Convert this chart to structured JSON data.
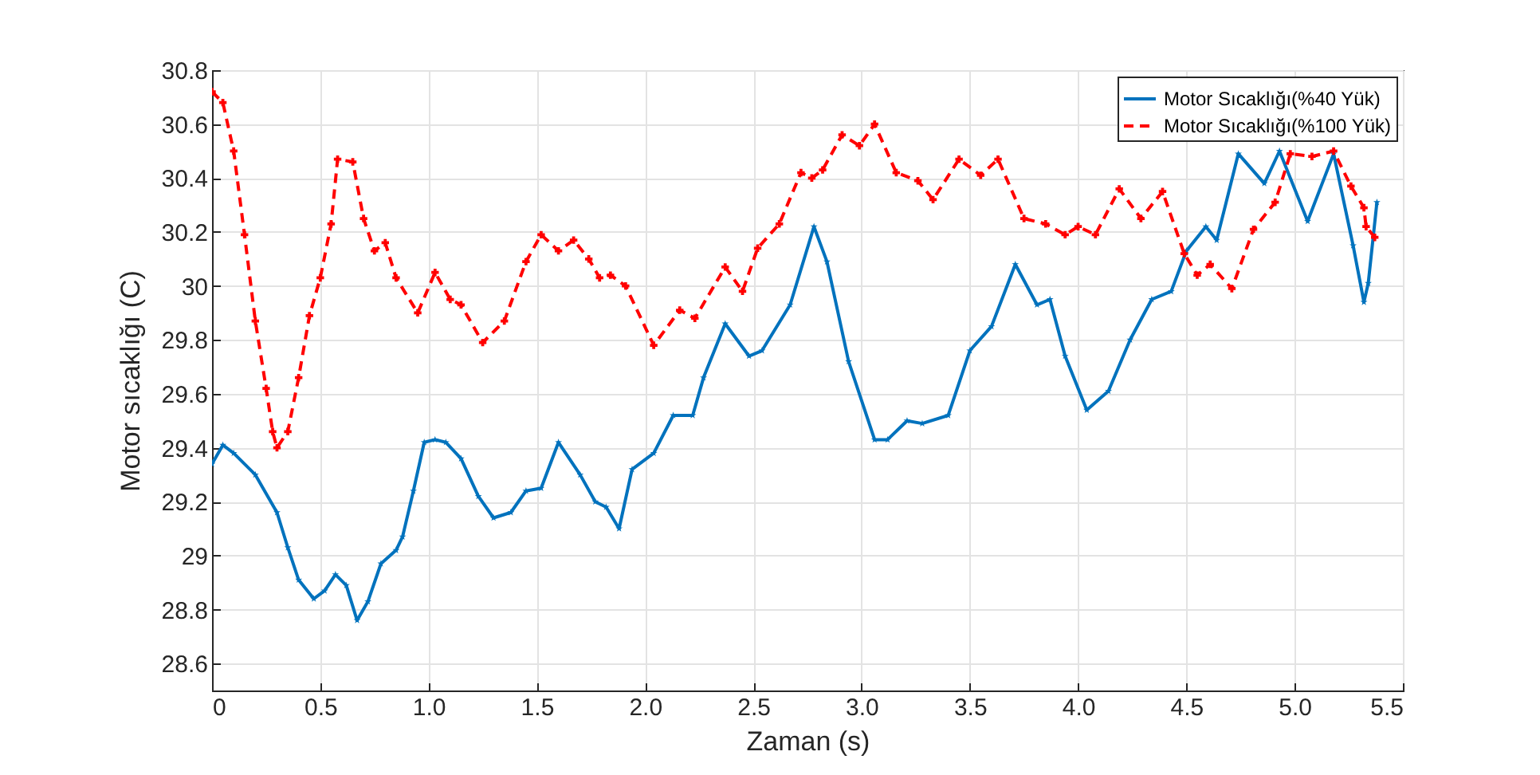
{
  "chart_data": {
    "type": "line",
    "xlabel": "Zaman (s)",
    "ylabel": "Motor sıcaklığı (C)",
    "xlim": [
      0,
      5.5
    ],
    "ylim": [
      28.5,
      30.8
    ],
    "xticks": [
      0,
      0.5,
      {
        "value": 1,
        "label": "1.0"
      },
      1.5,
      {
        "value": 2,
        "label": "2.0"
      },
      2.5,
      {
        "value": 3,
        "label": "3.0"
      },
      3.5,
      {
        "value": 4,
        "label": "4.0"
      },
      4.5,
      {
        "value": 5,
        "label": "5.0"
      },
      5.5
    ],
    "yticks": [
      28.6,
      28.8,
      29,
      29.2,
      29.4,
      29.6,
      29.8,
      30,
      30.2,
      30.4,
      30.6,
      30.8
    ],
    "grid": true,
    "legend": "top right",
    "series": [
      {
        "name": "Motor Sıcaklığı(%40 Yük)",
        "color": "#0072bd",
        "marker": "star",
        "line_style": "solid",
        "x": [
          0,
          0.05,
          0.1,
          0.2,
          0.3,
          0.35,
          0.4,
          0.47,
          0.52,
          0.57,
          0.62,
          0.67,
          0.72,
          0.78,
          0.85,
          0.88,
          0.93,
          0.98,
          1.03,
          1.08,
          1.15,
          1.23,
          1.3,
          1.38,
          1.45,
          1.52,
          1.6,
          1.7,
          1.77,
          1.82,
          1.88,
          1.94,
          2.04,
          2.13,
          2.22,
          2.27,
          2.37,
          2.48,
          2.54,
          2.67,
          2.78,
          2.84,
          2.94,
          3.06,
          3.12,
          3.21,
          3.28,
          3.4,
          3.5,
          3.6,
          3.71,
          3.81,
          3.87,
          3.94,
          4.04,
          4.14,
          4.24,
          4.34,
          4.43,
          4.5,
          4.59,
          4.64,
          4.74,
          4.86,
          4.93,
          5.06,
          5.18,
          5.27,
          5.32,
          5.34,
          5.38
        ],
        "values": [
          29.34,
          29.41,
          29.38,
          29.3,
          29.16,
          29.03,
          28.91,
          28.84,
          28.87,
          28.93,
          28.89,
          28.76,
          28.83,
          28.97,
          29.02,
          29.07,
          29.24,
          29.42,
          29.43,
          29.42,
          29.36,
          29.22,
          29.14,
          29.16,
          29.24,
          29.25,
          29.42,
          29.3,
          29.2,
          29.18,
          29.1,
          29.32,
          29.38,
          29.52,
          29.52,
          29.66,
          29.86,
          29.74,
          29.76,
          29.93,
          30.22,
          30.09,
          29.72,
          29.43,
          29.43,
          29.5,
          29.49,
          29.52,
          29.76,
          29.85,
          30.08,
          29.93,
          29.95,
          29.74,
          29.54,
          29.61,
          29.8,
          29.95,
          29.98,
          30.13,
          30.22,
          30.17,
          30.49,
          30.38,
          30.5,
          30.24,
          30.49,
          30.15,
          29.94,
          30.01,
          30.31
        ]
      },
      {
        "name": "Motor Sıcaklığı(%100 Yük)",
        "color": "#ff0000",
        "marker": "cross",
        "line_style": "dashed",
        "x": [
          0,
          0.05,
          0.1,
          0.15,
          0.2,
          0.25,
          0.28,
          0.3,
          0.35,
          0.4,
          0.45,
          0.5,
          0.55,
          0.58,
          0.65,
          0.7,
          0.75,
          0.8,
          0.85,
          0.95,
          1.03,
          1.1,
          1.15,
          1.25,
          1.35,
          1.45,
          1.52,
          1.6,
          1.67,
          1.74,
          1.79,
          1.84,
          1.91,
          2.04,
          2.16,
          2.23,
          2.37,
          2.45,
          2.52,
          2.62,
          2.72,
          2.77,
          2.82,
          2.91,
          2.99,
          3.06,
          3.16,
          3.26,
          3.33,
          3.45,
          3.55,
          3.63,
          3.75,
          3.85,
          3.94,
          4.0,
          4.08,
          4.19,
          4.29,
          4.39,
          4.49,
          4.55,
          4.61,
          4.71,
          4.81,
          4.91,
          4.98,
          5.08,
          5.18,
          5.26,
          5.32,
          5.33,
          5.37
        ],
        "values": [
          30.72,
          30.68,
          30.5,
          30.19,
          29.87,
          29.62,
          29.46,
          29.4,
          29.46,
          29.66,
          29.89,
          30.03,
          30.23,
          30.47,
          30.46,
          30.25,
          30.13,
          30.16,
          30.03,
          29.9,
          30.05,
          29.95,
          29.93,
          29.79,
          29.87,
          30.09,
          30.19,
          30.13,
          30.17,
          30.1,
          30.03,
          30.04,
          30,
          29.78,
          29.91,
          29.88,
          30.07,
          29.98,
          30.14,
          30.23,
          30.42,
          30.4,
          30.43,
          30.56,
          30.52,
          30.6,
          30.42,
          30.39,
          30.32,
          30.47,
          30.41,
          30.47,
          30.25,
          30.23,
          30.19,
          30.22,
          30.19,
          30.36,
          30.25,
          30.35,
          30.12,
          30.04,
          30.08,
          29.99,
          30.21,
          30.31,
          30.49,
          30.48,
          30.5,
          30.37,
          30.29,
          30.22,
          30.18
        ]
      }
    ]
  }
}
